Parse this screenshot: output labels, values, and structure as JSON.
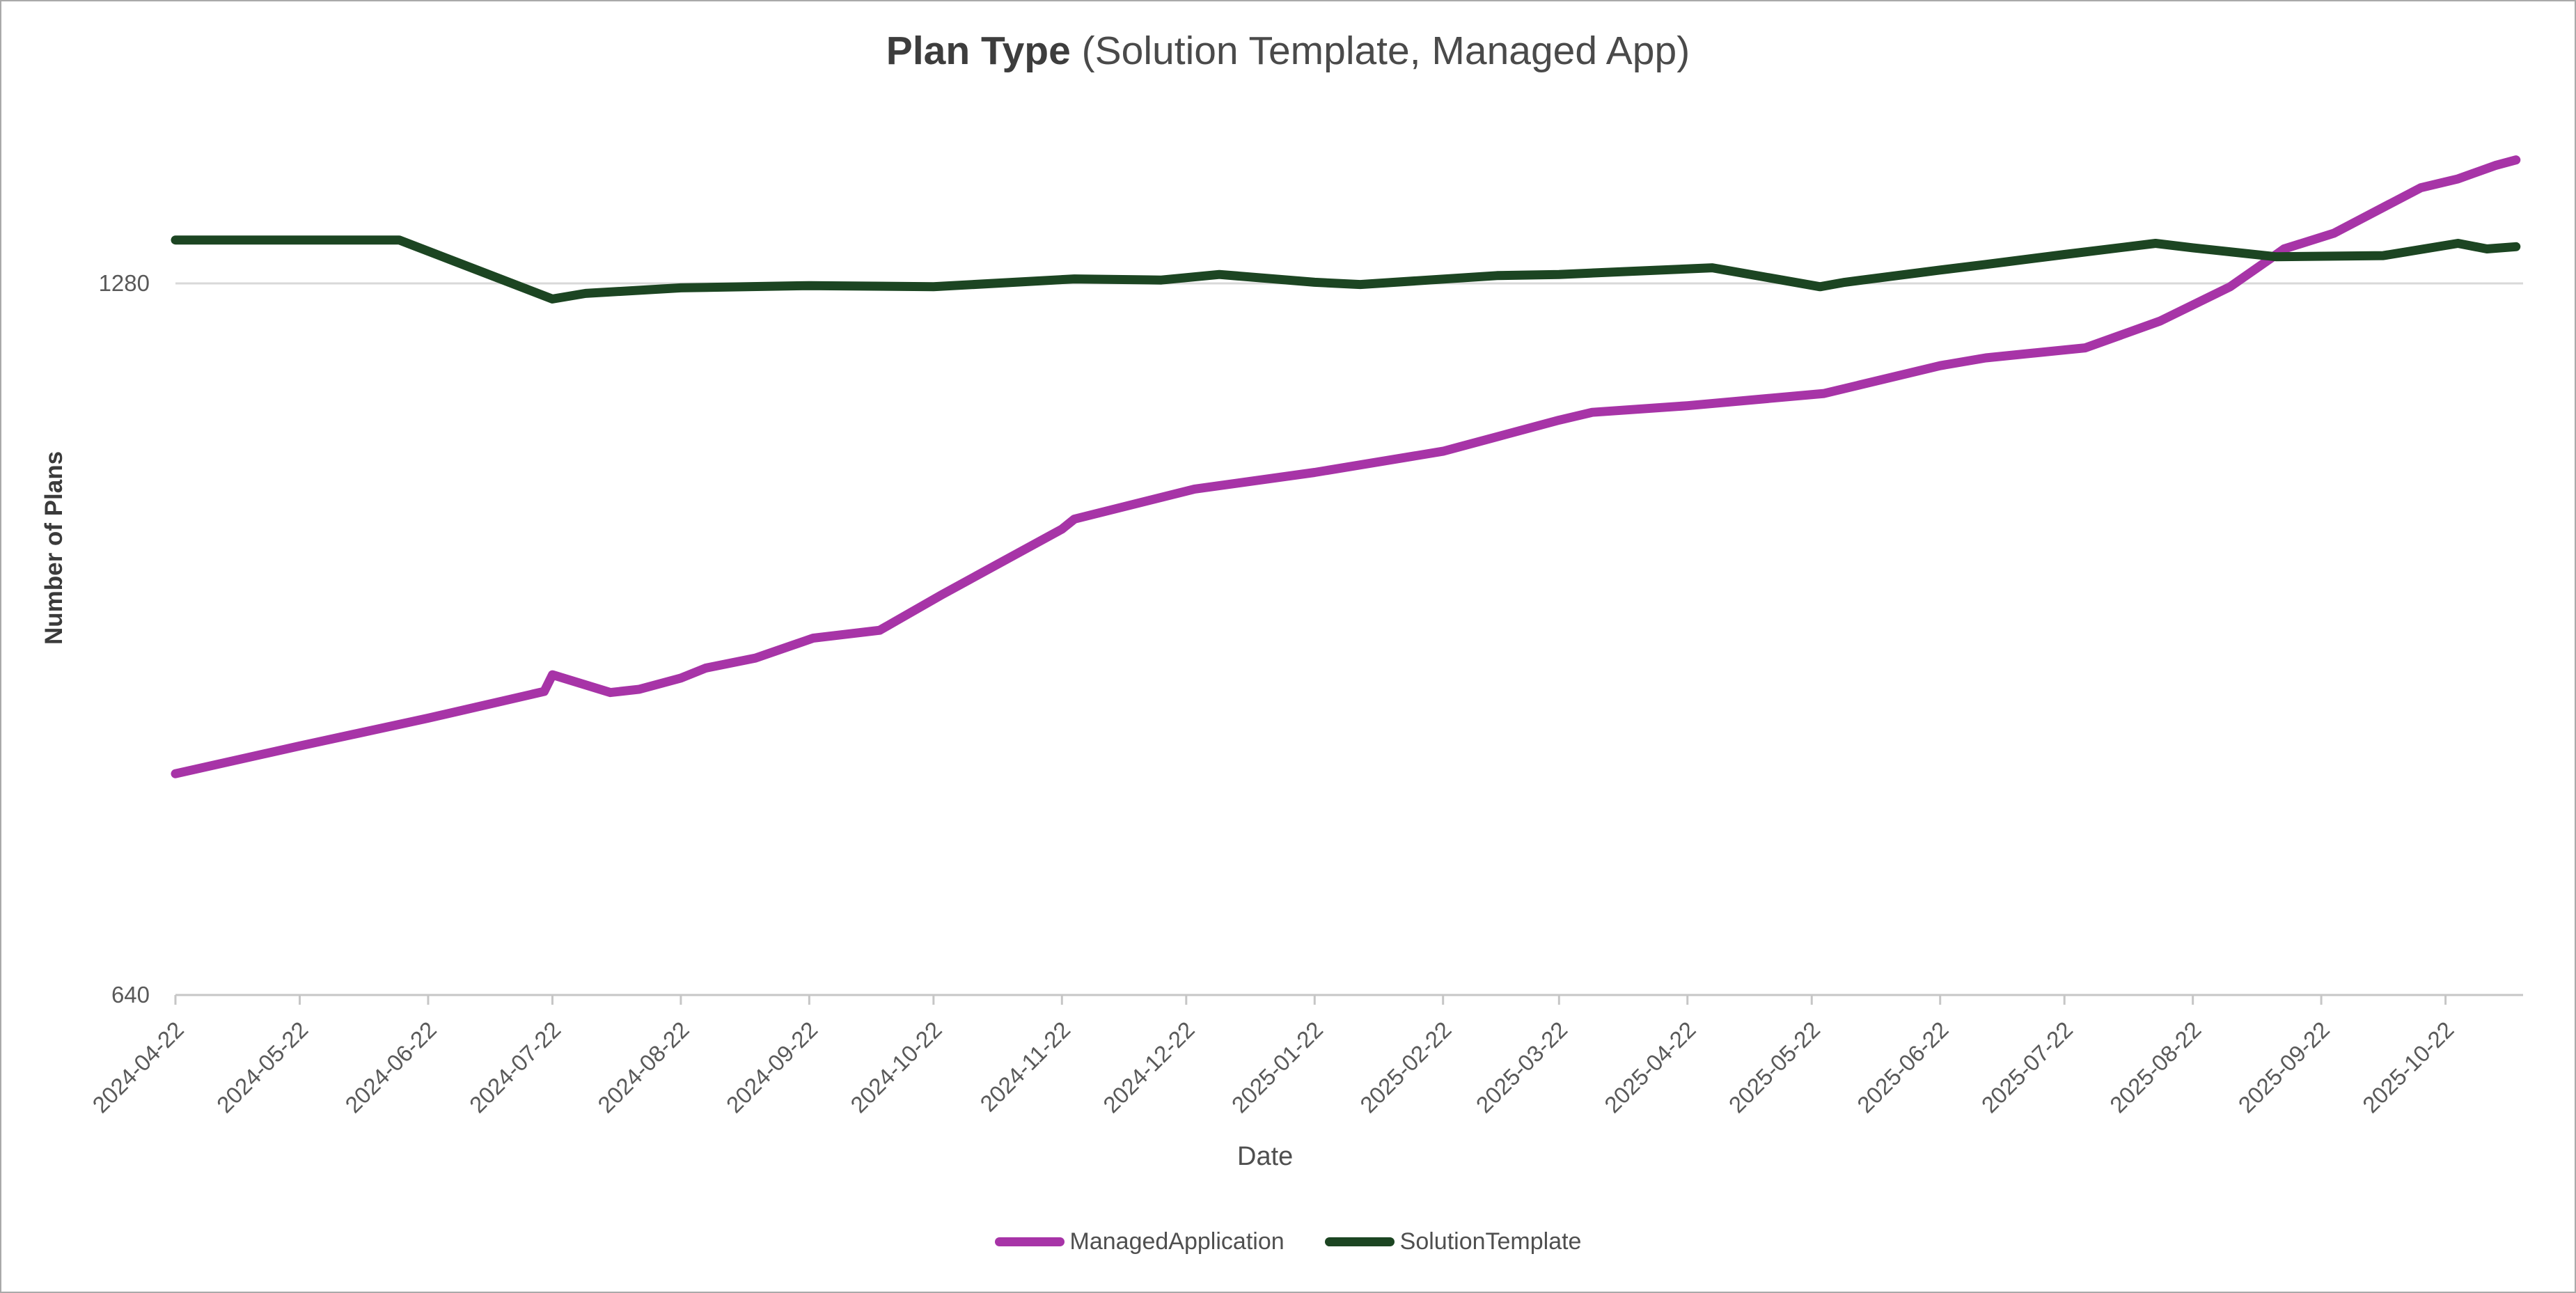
{
  "title": {
    "bold": "Plan Type",
    "regular": " (Solution Template, Managed App)"
  },
  "y_axis": {
    "label": "Number of Plans"
  },
  "x_axis": {
    "label": "Date"
  },
  "legend": {
    "items": [
      {
        "label": "ManagedApplication",
        "color": "#A734A7"
      },
      {
        "label": "SolutionTemplate",
        "color": "#1C4522"
      }
    ]
  },
  "colors": {
    "gridline": "#D9D9D9",
    "axis": "#C6C6C6",
    "tick_text": "#595959",
    "managed_application": "#A734A7",
    "solution_template": "#1C4522"
  },
  "chart_data": {
    "type": "line",
    "title": "Plan Type (Solution Template, Managed App)",
    "xlabel": "Date",
    "ylabel": "Number of Plans",
    "x_start": "2024-04-22",
    "x_end": "2025-11-08",
    "ylim": [
      640,
      1460
    ],
    "grid": "horizontal-only",
    "legend_position": "bottom-center",
    "y_ticks": [
      {
        "label": "1280",
        "value": 1280
      },
      {
        "label": "640",
        "value": 640
      }
    ],
    "gridline_values": [
      1280
    ],
    "x_tick_labels": [
      "2024-04-22",
      "2024-05-22",
      "2024-06-22",
      "2024-07-22",
      "2024-08-22",
      "2024-09-22",
      "2024-10-22",
      "2024-11-22",
      "2024-12-22",
      "2025-01-22",
      "2025-02-22",
      "2025-03-22",
      "2025-04-22",
      "2025-05-22",
      "2025-06-22",
      "2025-07-22",
      "2025-08-22",
      "2025-09-22",
      "2025-10-22"
    ],
    "series": [
      {
        "name": "ManagedApplication",
        "color": "#A734A7",
        "points": [
          {
            "date": "2024-04-22",
            "value": 839
          },
          {
            "date": "2024-05-22",
            "value": 864
          },
          {
            "date": "2024-06-22",
            "value": 889
          },
          {
            "date": "2024-07-20",
            "value": 913
          },
          {
            "date": "2024-07-22",
            "value": 928
          },
          {
            "date": "2024-08-05",
            "value": 912
          },
          {
            "date": "2024-08-12",
            "value": 915
          },
          {
            "date": "2024-08-22",
            "value": 925
          },
          {
            "date": "2024-08-28",
            "value": 934
          },
          {
            "date": "2024-09-09",
            "value": 943
          },
          {
            "date": "2024-09-23",
            "value": 961
          },
          {
            "date": "2024-10-09",
            "value": 968
          },
          {
            "date": "2024-10-24",
            "value": 1000
          },
          {
            "date": "2024-11-22",
            "value": 1059
          },
          {
            "date": "2024-11-25",
            "value": 1068
          },
          {
            "date": "2024-12-24",
            "value": 1095
          },
          {
            "date": "2025-01-22",
            "value": 1110
          },
          {
            "date": "2025-02-22",
            "value": 1129
          },
          {
            "date": "2025-03-22",
            "value": 1157
          },
          {
            "date": "2025-03-30",
            "value": 1164
          },
          {
            "date": "2025-04-22",
            "value": 1170
          },
          {
            "date": "2025-05-25",
            "value": 1181
          },
          {
            "date": "2025-06-22",
            "value": 1206
          },
          {
            "date": "2025-07-03",
            "value": 1213
          },
          {
            "date": "2025-07-27",
            "value": 1222
          },
          {
            "date": "2025-08-14",
            "value": 1246
          },
          {
            "date": "2025-08-31",
            "value": 1277
          },
          {
            "date": "2025-09-10",
            "value": 1303
          },
          {
            "date": "2025-09-13",
            "value": 1311
          },
          {
            "date": "2025-09-25",
            "value": 1325
          },
          {
            "date": "2025-10-16",
            "value": 1366
          },
          {
            "date": "2025-10-25",
            "value": 1374
          },
          {
            "date": "2025-11-03",
            "value": 1386
          },
          {
            "date": "2025-11-08",
            "value": 1391
          }
        ]
      },
      {
        "name": "SolutionTemplate",
        "color": "#1C4522",
        "points": [
          {
            "date": "2024-04-22",
            "value": 1319
          },
          {
            "date": "2024-05-22",
            "value": 1319
          },
          {
            "date": "2024-06-15",
            "value": 1319
          },
          {
            "date": "2024-07-22",
            "value": 1266
          },
          {
            "date": "2024-07-30",
            "value": 1271
          },
          {
            "date": "2024-08-22",
            "value": 1276
          },
          {
            "date": "2024-09-22",
            "value": 1278
          },
          {
            "date": "2024-10-22",
            "value": 1277
          },
          {
            "date": "2024-11-25",
            "value": 1284
          },
          {
            "date": "2024-12-16",
            "value": 1283
          },
          {
            "date": "2024-12-30",
            "value": 1288
          },
          {
            "date": "2025-01-22",
            "value": 1281
          },
          {
            "date": "2025-02-02",
            "value": 1279
          },
          {
            "date": "2025-03-07",
            "value": 1287
          },
          {
            "date": "2025-03-22",
            "value": 1288
          },
          {
            "date": "2025-04-28",
            "value": 1294
          },
          {
            "date": "2025-05-24",
            "value": 1277
          },
          {
            "date": "2025-05-30",
            "value": 1281
          },
          {
            "date": "2025-06-22",
            "value": 1292
          },
          {
            "date": "2025-07-03",
            "value": 1297
          },
          {
            "date": "2025-07-22",
            "value": 1306
          },
          {
            "date": "2025-08-13",
            "value": 1316
          },
          {
            "date": "2025-08-22",
            "value": 1312
          },
          {
            "date": "2025-09-11",
            "value": 1304
          },
          {
            "date": "2025-10-07",
            "value": 1305
          },
          {
            "date": "2025-10-25",
            "value": 1316
          },
          {
            "date": "2025-11-01",
            "value": 1311
          },
          {
            "date": "2025-11-08",
            "value": 1313
          }
        ]
      }
    ]
  }
}
